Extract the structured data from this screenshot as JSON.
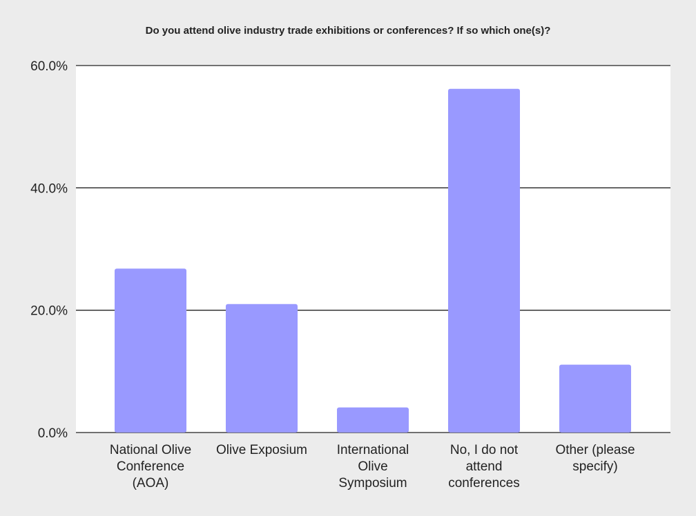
{
  "chart_data": {
    "type": "bar",
    "title": "Do you attend olive industry trade exhibitions or conferences? If so which one(s)?",
    "xlabel": "",
    "ylabel": "",
    "categories": [
      [
        "National Olive",
        "Conference",
        "(AOA)"
      ],
      [
        "Olive Exposium"
      ],
      [
        "International",
        "Olive",
        "Symposium"
      ],
      [
        "No, I do not",
        "attend",
        "conferences"
      ],
      [
        "Other (please",
        "specify)"
      ]
    ],
    "values": [
      26.8,
      21.0,
      4.1,
      56.2,
      11.1
    ],
    "ylim": [
      0,
      60
    ],
    "yticks": [
      0,
      20,
      40,
      60
    ],
    "ytick_labels": [
      "0.0%",
      "20.0%",
      "40.0%",
      "60.0%"
    ],
    "grid": true,
    "colors": {
      "bar": "#9999ff",
      "plot_background": "#ffffff",
      "page_background": "#ececec",
      "gridline": "#222222"
    }
  }
}
